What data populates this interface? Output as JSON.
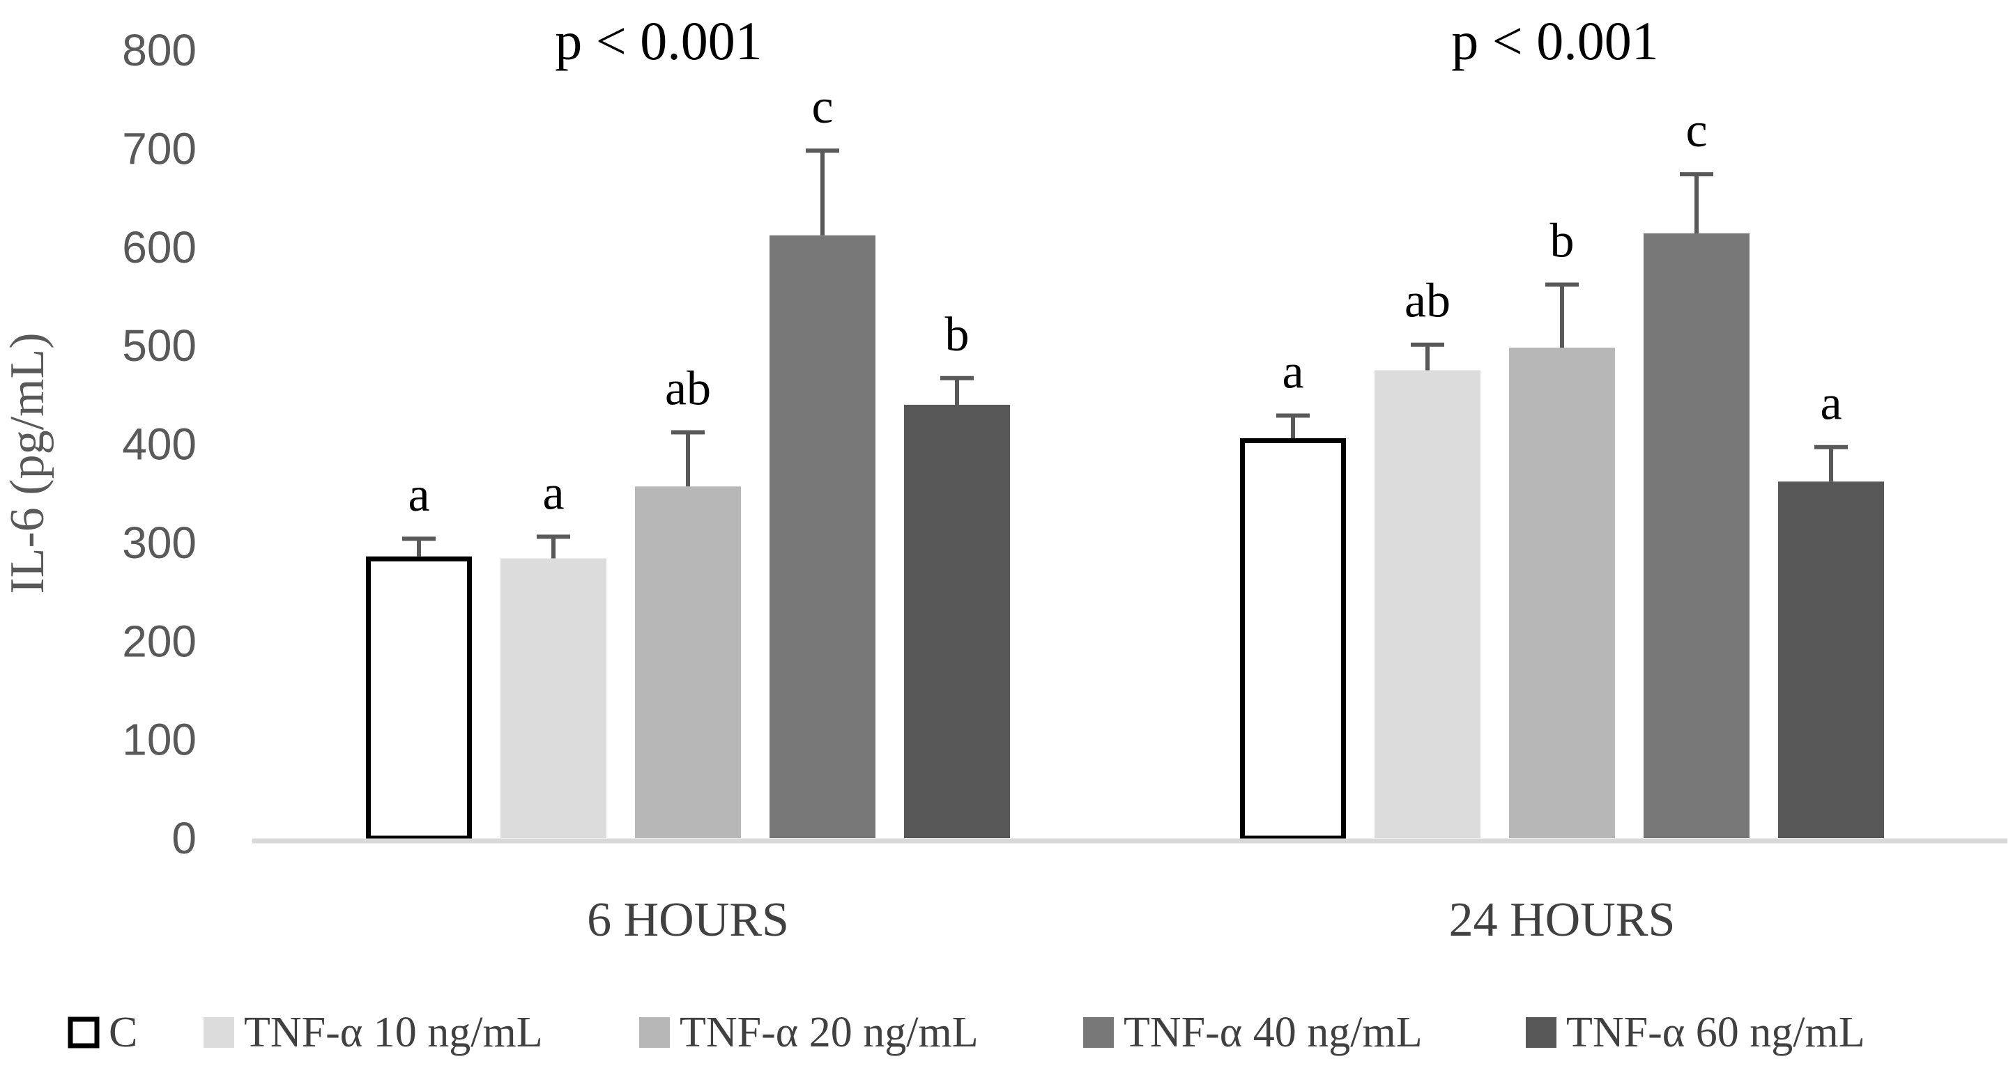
{
  "chart_data": {
    "type": "bar",
    "title": "",
    "xlabel": "",
    "ylabel": "IL-6 (pg/mL)",
    "ylim": [
      0,
      800
    ],
    "yticks": [
      0,
      100,
      200,
      300,
      400,
      500,
      600,
      700,
      800
    ],
    "grid": false,
    "legend_position": "bottom",
    "categories": [
      "6 HOURS",
      "24 HOURS"
    ],
    "pvalues": [
      "p < 0.001",
      "p < 0.001"
    ],
    "series": [
      {
        "name": "C",
        "color": "#ffffff",
        "stroke": "#000000",
        "values": [
          286,
          406
        ],
        "errors": [
          18,
          23
        ],
        "letters": [
          "a",
          "a"
        ]
      },
      {
        "name": "TNF-α 10 ng/mL",
        "color": "#dcdcdc",
        "values": [
          284,
          475
        ],
        "errors": [
          22,
          26
        ],
        "letters": [
          "a",
          "ab"
        ]
      },
      {
        "name": "TNF-α 20 ng/mL",
        "color": "#b7b7b7",
        "values": [
          357,
          498
        ],
        "errors": [
          55,
          64
        ],
        "letters": [
          "ab",
          "b"
        ]
      },
      {
        "name": "TNF-α 40 ng/mL",
        "color": "#787878",
        "values": [
          612,
          614
        ],
        "errors": [
          86,
          60
        ],
        "letters": [
          "c",
          "c"
        ]
      },
      {
        "name": "TNF-α 60 ng/mL",
        "color": "#575757",
        "values": [
          440,
          362
        ],
        "errors": [
          27,
          35
        ],
        "letters": [
          "b",
          "a"
        ]
      }
    ]
  }
}
